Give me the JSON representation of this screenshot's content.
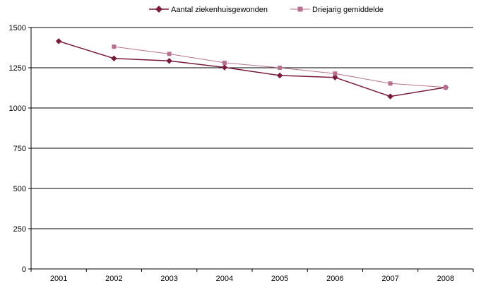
{
  "chart_data": {
    "type": "line",
    "title": "",
    "xlabel": "",
    "ylabel": "",
    "x": [
      "2001",
      "2002",
      "2003",
      "2004",
      "2005",
      "2006",
      "2007",
      "2008"
    ],
    "ylim": [
      0,
      1500
    ],
    "yticks": [
      0,
      250,
      500,
      750,
      1000,
      1250,
      1500
    ],
    "grid": "horizontal",
    "legend_position": "top",
    "series": [
      {
        "name": "Aantal ziekenhuisgewonden",
        "color": "#7a1a3c",
        "marker": "diamond",
        "values": [
          1415,
          1308,
          1293,
          1252,
          1202,
          1190,
          1072,
          1128
        ]
      },
      {
        "name": "Driejarig gemiddelde",
        "color": "#b87090",
        "marker": "square",
        "values": [
          null,
          1381,
          1336,
          1281,
          1250,
          1214,
          1152,
          1128
        ]
      }
    ]
  }
}
